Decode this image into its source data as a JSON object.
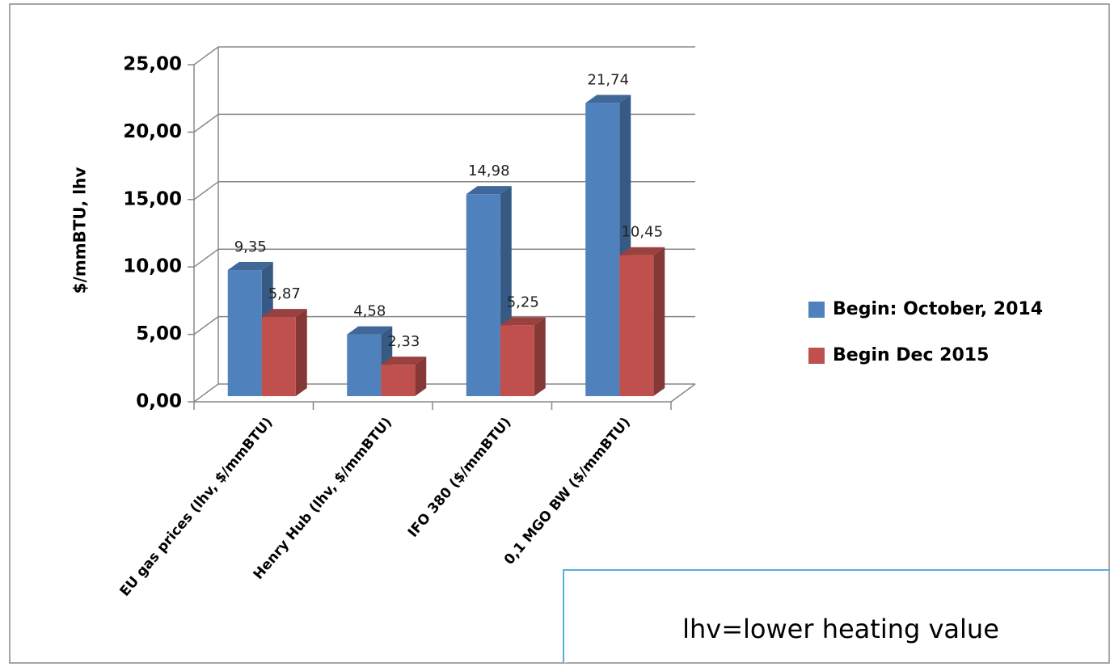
{
  "chart_data": {
    "type": "bar3d",
    "y_label": "$/mmBTU, lhv",
    "categories": [
      "EU gas prices (lhv, $/mmBTU)",
      "Henry Hub (lhv, $/mmBTU)",
      "IFO 380 ($/mmBTU)",
      "0,1 MGO BW ($/mmBTU)"
    ],
    "series": [
      {
        "name": "Begin: October, 2014",
        "color": "#4f81bd",
        "values": [
          9.35,
          4.58,
          14.98,
          21.74
        ],
        "value_labels": [
          "9,35",
          "4,58",
          "14,98",
          "21,74"
        ]
      },
      {
        "name": "Begin Dec 2015",
        "color": "#c0504d",
        "values": [
          5.87,
          2.33,
          5.25,
          10.45
        ],
        "value_labels": [
          "5,87",
          "2,33",
          "5,25",
          "10,45"
        ]
      }
    ],
    "ylim": [
      0,
      25
    ],
    "yticks": [
      {
        "value": 0,
        "label": "0,00"
      },
      {
        "value": 5,
        "label": "5,00"
      },
      {
        "value": 10,
        "label": "10,00"
      },
      {
        "value": 15,
        "label": "15,00"
      },
      {
        "value": 20,
        "label": "20,00"
      },
      {
        "value": 25,
        "label": "25,00"
      }
    ],
    "grid": true,
    "legend": "right",
    "annotation": "lhv=lower heating value"
  }
}
